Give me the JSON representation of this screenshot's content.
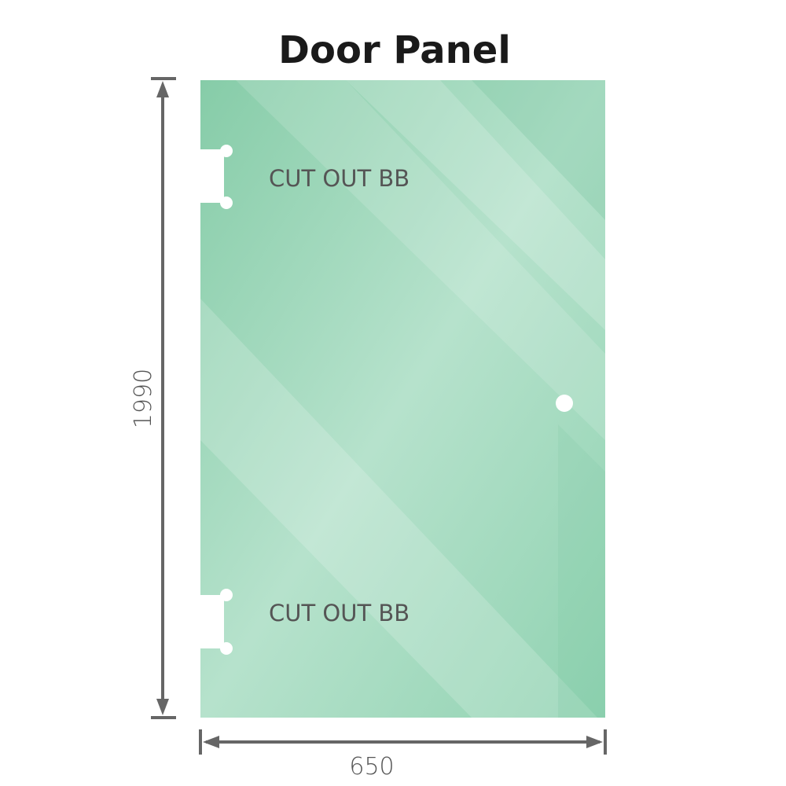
{
  "title": "Door Panel",
  "cutouts": [
    {
      "label": "CUT OUT BB"
    },
    {
      "label": "CUT OUT BB"
    }
  ],
  "dimensions": {
    "height": "1990",
    "width": "650"
  },
  "colors": {
    "glass": "#8fd0b0",
    "glass_light": "#bde6d3",
    "dimension_line": "#666666"
  }
}
